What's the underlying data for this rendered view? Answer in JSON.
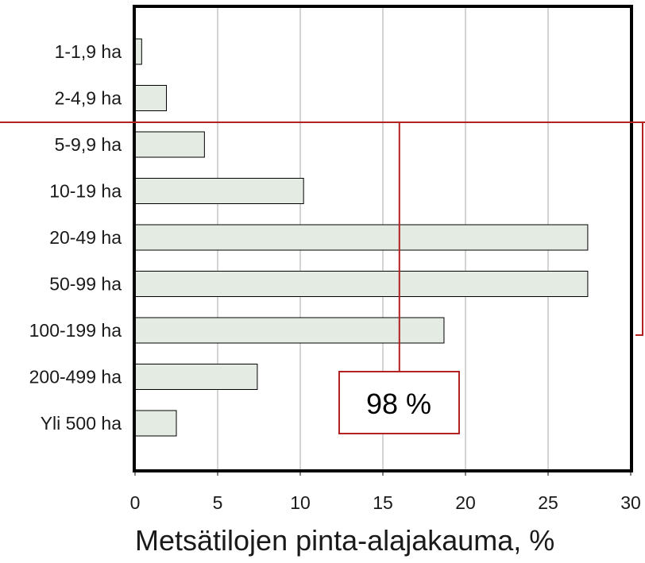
{
  "chart_data": {
    "type": "bar",
    "orientation": "horizontal",
    "categories": [
      "1-1,9 ha",
      "2-4,9 ha",
      "5-9,9 ha",
      "10-19 ha",
      "20-49 ha",
      "50-99 ha",
      "100-199 ha",
      "200-499 ha",
      "Yli 500 ha"
    ],
    "values": [
      0.4,
      1.9,
      4.2,
      10.2,
      27.4,
      27.4,
      18.7,
      7.4,
      2.5
    ],
    "xlabel": "Metsätilojen pinta-alajakauma, %",
    "xlim": [
      0,
      30
    ],
    "xticks": [
      "0",
      "5",
      "10",
      "15",
      "20",
      "25",
      "30"
    ],
    "xtick_values": [
      0,
      5,
      10,
      15,
      20,
      25,
      30
    ],
    "grid": "vertical",
    "bar_color": "#e3ebe3",
    "bar_edge_color": "#000000",
    "annotations": [
      {
        "text": "98 %",
        "x": 16,
        "reference_between": [
          "2-4,9 ha",
          "5-9,9 ha"
        ]
      }
    ],
    "annotation_color": "#b22222"
  }
}
